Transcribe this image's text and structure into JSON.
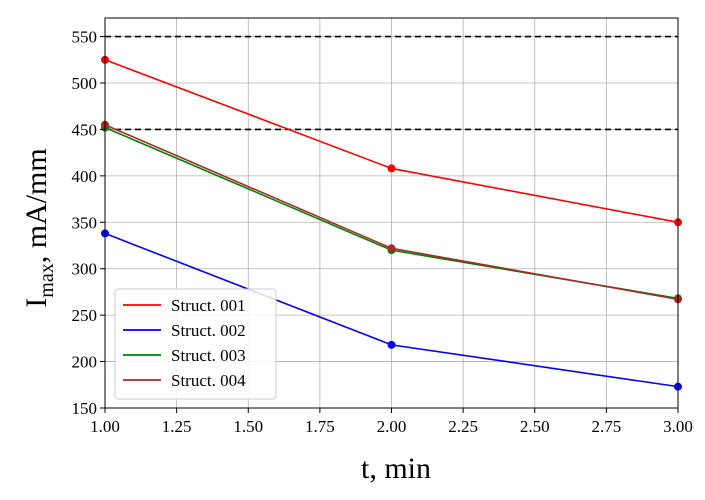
{
  "chart_data": {
    "type": "line",
    "title": "",
    "xlabel": "t, min",
    "ylabel_main": "I",
    "ylabel_sub": "max",
    "ylabel_rest": ", mA/mm",
    "xlim": [
      1.0,
      3.0
    ],
    "ylim": [
      150,
      570
    ],
    "x_ticks": [
      1.0,
      1.25,
      1.5,
      1.75,
      2.0,
      2.25,
      2.5,
      2.75,
      3.0
    ],
    "x_tick_labels": [
      "1.00",
      "1.25",
      "1.50",
      "1.75",
      "2.00",
      "2.25",
      "2.50",
      "2.75",
      "3.00"
    ],
    "y_ticks": [
      150,
      200,
      250,
      300,
      350,
      400,
      450,
      500,
      550
    ],
    "y_tick_labels": [
      "150",
      "200",
      "250",
      "300",
      "350",
      "400",
      "450",
      "500",
      "550"
    ],
    "grid": true,
    "reference_lines": [
      {
        "y": 550,
        "style": "dashed",
        "color": "#000000"
      },
      {
        "y": 450,
        "style": "dashed",
        "color": "#000000"
      }
    ],
    "x": [
      1.0,
      2.0,
      3.0
    ],
    "series": [
      {
        "name": "Struct. 001",
        "color": "#ff0000",
        "values": [
          525,
          408,
          350
        ]
      },
      {
        "name": "Struct. 002",
        "color": "#0000ff",
        "values": [
          338,
          218,
          173
        ]
      },
      {
        "name": "Struct. 003",
        "color": "#008000",
        "values": [
          452,
          320,
          268
        ]
      },
      {
        "name": "Struct. 004",
        "color": "#a52a2a",
        "values": [
          455,
          322,
          267
        ]
      }
    ],
    "legend_position": "lower-left"
  }
}
